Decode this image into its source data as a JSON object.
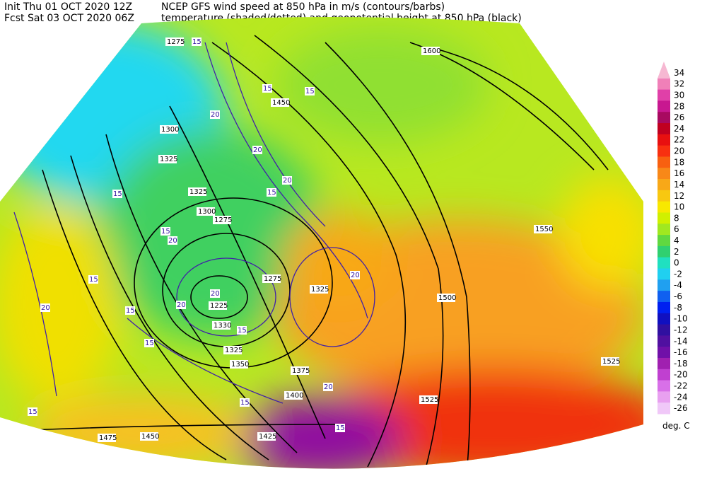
{
  "header": {
    "init": "Init  Thu 01 OCT 2020 12Z",
    "forecast": "Fcst Sat 03 OCT 2020 06Z",
    "title_line1": "NCEP GFS wind speed at 850 hPa in m/s (contours/barbs)",
    "title_line2": "temperature (shaded/dotted) and geopotential height at 850 hPa (black)"
  },
  "colorbar": {
    "unit": "deg. C",
    "levels": [
      {
        "label": "34",
        "color": "#f6b8d2"
      },
      {
        "label": "32",
        "color": "#f080b8"
      },
      {
        "label": "30",
        "color": "#e040a8"
      },
      {
        "label": "28",
        "color": "#c81890"
      },
      {
        "label": "26",
        "color": "#a80a60"
      },
      {
        "label": "24",
        "color": "#c00020"
      },
      {
        "label": "22",
        "color": "#e81010"
      },
      {
        "label": "20",
        "color": "#f83010"
      },
      {
        "label": "18",
        "color": "#f86010"
      },
      {
        "label": "16",
        "color": "#f88818"
      },
      {
        "label": "14",
        "color": "#f8a818"
      },
      {
        "label": "12",
        "color": "#f8c810"
      },
      {
        "label": "10",
        "color": "#f8e800"
      },
      {
        "label": "8",
        "color": "#d0f000"
      },
      {
        "label": "6",
        "color": "#a0e820"
      },
      {
        "label": "4",
        "color": "#60d840"
      },
      {
        "label": "2",
        "color": "#30d070"
      },
      {
        "label": "0",
        "color": "#20e0c0"
      },
      {
        "label": "-2",
        "color": "#20d0f0"
      },
      {
        "label": "-4",
        "color": "#20a0f0"
      },
      {
        "label": "-6",
        "color": "#1060f0"
      },
      {
        "label": "-8",
        "color": "#0020f0"
      },
      {
        "label": "-10",
        "color": "#1010c0"
      },
      {
        "label": "-12",
        "color": "#3010a0"
      },
      {
        "label": "-14",
        "color": "#5010a0"
      },
      {
        "label": "-16",
        "color": "#7010a8"
      },
      {
        "label": "-18",
        "color": "#a020b0"
      },
      {
        "label": "-20",
        "color": "#c040d0"
      },
      {
        "label": "-22",
        "color": "#d870e8"
      },
      {
        "label": "-24",
        "color": "#e8a0f0"
      },
      {
        "label": "-26",
        "color": "#f0c8f8"
      }
    ]
  },
  "map": {
    "height_labels": [
      "1275",
      "1450",
      "1300",
      "1325",
      "1325",
      "1300",
      "1275",
      "1275",
      "1225",
      "1325",
      "1350",
      "1375",
      "1400",
      "1425",
      "1450",
      "1475",
      "1500",
      "1525",
      "1525",
      "1550",
      "1600",
      "1325",
      "1330"
    ],
    "wind_labels": [
      "15",
      "20",
      "15",
      "20",
      "15",
      "20",
      "15",
      "15",
      "20",
      "15",
      "15",
      "20",
      "15",
      "20",
      "15",
      "20",
      "15",
      "15",
      "20",
      "15",
      "15",
      "20"
    ]
  }
}
